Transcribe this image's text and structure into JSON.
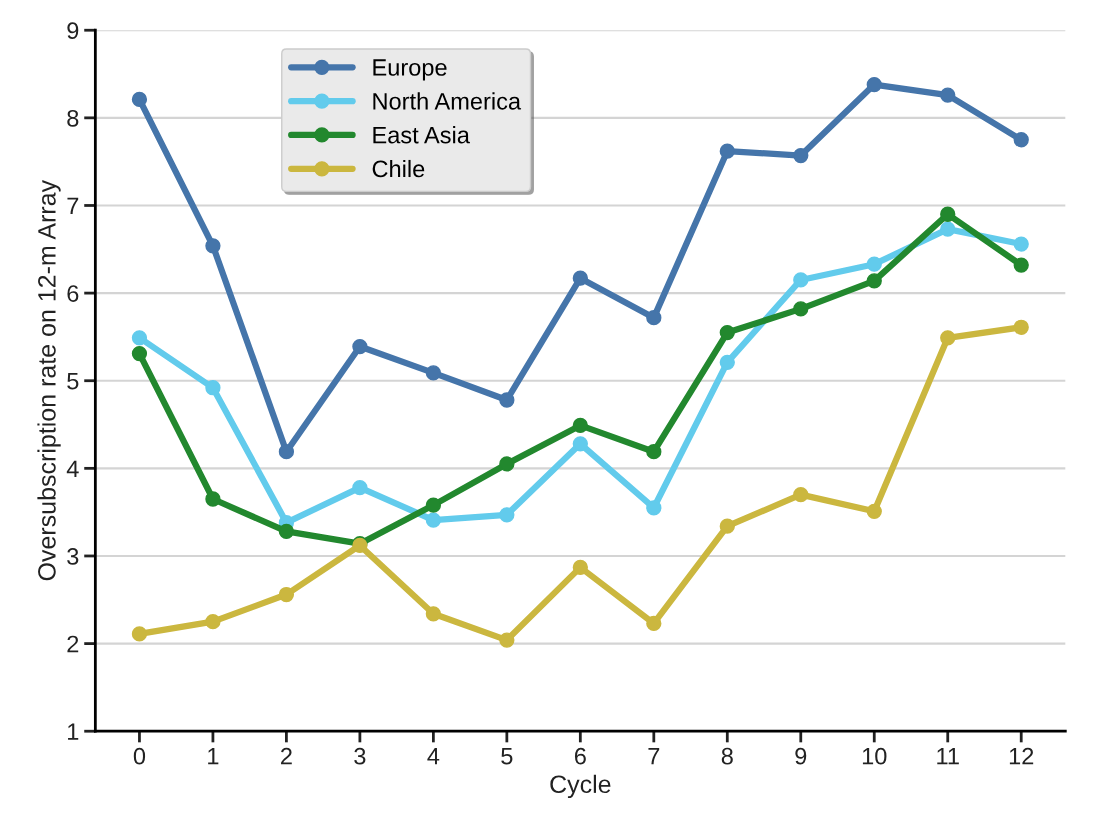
{
  "chart_data": {
    "type": "line",
    "xlabel": "Cycle",
    "ylabel": "Oversubscription rate on 12-m Array",
    "categories": [
      "0",
      "1",
      "2",
      "3",
      "4",
      "5",
      "6",
      "7",
      "8",
      "9",
      "10",
      "11",
      "12"
    ],
    "series": [
      {
        "name": "Europe",
        "color": "#4575aa",
        "values": [
          8.21,
          6.54,
          4.19,
          5.39,
          5.09,
          4.78,
          6.17,
          5.72,
          7.62,
          7.57,
          8.38,
          8.26,
          7.75
        ]
      },
      {
        "name": "North America",
        "color": "#62cbec",
        "values": [
          5.49,
          4.92,
          3.38,
          3.78,
          3.41,
          3.47,
          4.28,
          3.55,
          5.21,
          6.15,
          6.33,
          6.73,
          6.56
        ]
      },
      {
        "name": "East Asia",
        "color": "#22882e",
        "values": [
          5.31,
          3.65,
          3.28,
          3.14,
          3.58,
          4.05,
          4.49,
          4.19,
          5.55,
          5.82,
          6.14,
          6.9,
          6.32
        ]
      },
      {
        "name": "Chile",
        "color": "#cbb73f",
        "values": [
          2.11,
          2.25,
          2.56,
          3.12,
          2.34,
          2.04,
          2.87,
          2.23,
          3.34,
          3.7,
          3.51,
          5.49,
          5.61
        ]
      }
    ],
    "ylim": [
      1,
      9
    ],
    "yticks": [
      1,
      2,
      3,
      4,
      5,
      6,
      7,
      8,
      9
    ],
    "grid": "y",
    "legend": "top left",
    "marker": "circle",
    "line_style": "solid"
  }
}
